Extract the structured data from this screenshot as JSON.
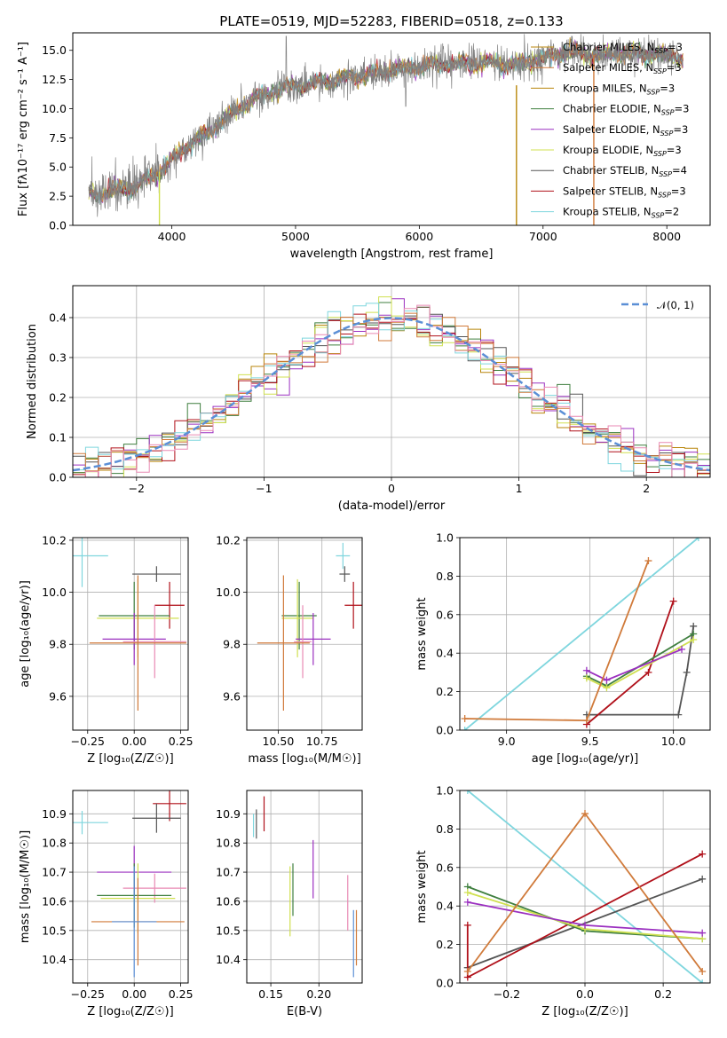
{
  "figure": {
    "title": "PLATE=0519, MJD=52283, FIBERID=0518, z=0.133"
  },
  "colors": {
    "models": [
      "#b8860b",
      "#3f7f3f",
      "#9b30c0",
      "#d0e050",
      "#555555",
      "#b0101a",
      "#7fd6de"
    ],
    "orange": "#d07a3a",
    "pink": "#e98ab4",
    "gauss": "#5b8fd6",
    "data": "#808080"
  },
  "chart_data": [
    {
      "id": "spectrum",
      "type": "line",
      "xlabel": "wavelength [Angstrom, rest frame]",
      "ylabel": "Flux [fλ10⁻¹⁷ erg cm⁻² s⁻¹ A⁻¹]",
      "xlim": [
        3200,
        8350
      ],
      "ylim": [
        0,
        16.5
      ],
      "xticks": [
        "4000",
        "5000",
        "6000",
        "7000",
        "8000"
      ],
      "yticks": [
        "0.0",
        "2.5",
        "5.0",
        "7.5",
        "10.0",
        "12.5",
        "15.0"
      ],
      "grid": false,
      "legend_position": "upper right",
      "legend": [
        "Chabrier MILES, N_SSP=3",
        "Salpeter MILES, N_SSP=3",
        "Kroupa MILES, N_SSP=3",
        "Chabrier ELODIE, N_SSP=3",
        "Salpeter ELODIE, N_SSP=3",
        "Kroupa ELODIE, N_SSP=3",
        "Chabrier STELIB, N_SSP=4",
        "Salpeter STELIB, N_SSP=3",
        "Kroupa STELIB, N_SSP=2"
      ],
      "continuum_x": [
        3300,
        3500,
        3700,
        3900,
        4000,
        4100,
        4300,
        4500,
        4700,
        4900,
        5000,
        5300,
        5600,
        6000,
        6400,
        6800,
        7000,
        7200,
        7400,
        7700,
        8000,
        8150
      ],
      "continuum_y": [
        2.7,
        2.9,
        3.3,
        4.6,
        5.6,
        6.6,
        8.0,
        9.7,
        11.0,
        11.8,
        12.0,
        12.4,
        13.0,
        13.6,
        13.9,
        13.8,
        14.3,
        14.9,
        14.6,
        14.8,
        14.6,
        14.4
      ]
    },
    {
      "id": "residuals",
      "type": "histogram",
      "xlabel": "(data-model)/error",
      "ylabel": "Normed distribution",
      "xlim": [
        -2.5,
        2.5
      ],
      "ylim": [
        0,
        0.48
      ],
      "xticks": [
        "−2",
        "−1",
        "0",
        "1",
        "2"
      ],
      "yticks": [
        "0.0",
        "0.1",
        "0.2",
        "0.3",
        "0.4"
      ],
      "grid": true,
      "legend_position": "upper right",
      "gauss_label": "𝒩(0, 1)",
      "bin_width": 0.1
    },
    {
      "id": "age_vs_z",
      "type": "errorbar",
      "xlabel": "Z [log₁₀(Z/Z☉)]",
      "ylabel": "age  [log₁₀(age/yr)]",
      "xlim": [
        -0.33,
        0.29
      ],
      "ylim": [
        9.47,
        10.21
      ],
      "xticks": [
        "−0.25",
        "0.00",
        "0.25"
      ],
      "yticks": [
        "9.6",
        "9.8",
        "10.0",
        "10.2"
      ],
      "grid": true,
      "points": [
        {
          "color": "#7fd6de",
          "x": -0.28,
          "xerr": 0.14,
          "y": 10.14,
          "yerr": 0.12
        },
        {
          "color": "#555555",
          "x": 0.12,
          "xerr": 0.13,
          "y": 10.07,
          "yerr": 0.03
        },
        {
          "color": "#b0101a",
          "x": 0.19,
          "xerr": 0.08,
          "y": 9.95,
          "yerr": 0.09
        },
        {
          "color": "#3f7f3f",
          "x": 0.0,
          "xerr": 0.19,
          "y": 9.91,
          "yerr": 0.13
        },
        {
          "color": "#d0e050",
          "x": 0.02,
          "xerr": 0.22,
          "y": 9.9,
          "yerr": 0.15
        },
        {
          "color": "#9b30c0",
          "x": 0.0,
          "xerr": 0.17,
          "y": 9.82,
          "yerr": 0.1
        },
        {
          "color": "#e98ab4",
          "x": 0.11,
          "xerr": 0.17,
          "y": 9.81,
          "yerr": 0.14
        },
        {
          "color": "#d07a3a",
          "x": 0.02,
          "xerr": 0.26,
          "y": 9.805,
          "yerr": 0.26
        }
      ]
    },
    {
      "id": "age_vs_mass",
      "type": "errorbar",
      "xlabel": "mass [log₁₀(M/M☉)]",
      "ylabel": "",
      "xlim": [
        10.32,
        10.98
      ],
      "ylim": [
        9.47,
        10.21
      ],
      "xticks": [
        "10.50",
        "10.75"
      ],
      "yticks": [
        "9.6",
        "9.8",
        "10.0",
        "10.2"
      ],
      "grid": true,
      "points": [
        {
          "color": "#7fd6de",
          "x": 10.87,
          "xerr": 0.04,
          "y": 10.14,
          "yerr": 0.05
        },
        {
          "color": "#555555",
          "x": 10.88,
          "xerr": 0.03,
          "y": 10.07,
          "yerr": 0.03
        },
        {
          "color": "#b0101a",
          "x": 10.93,
          "xerr": 0.05,
          "y": 9.95,
          "yerr": 0.09
        },
        {
          "color": "#3f7f3f",
          "x": 10.62,
          "xerr": 0.1,
          "y": 9.91,
          "yerr": 0.13
        },
        {
          "color": "#d0e050",
          "x": 10.61,
          "xerr": 0.09,
          "y": 9.9,
          "yerr": 0.15
        },
        {
          "color": "#9b30c0",
          "x": 10.7,
          "xerr": 0.1,
          "y": 9.82,
          "yerr": 0.1
        },
        {
          "color": "#e98ab4",
          "x": 10.64,
          "xerr": 0.05,
          "y": 9.81,
          "yerr": 0.14
        },
        {
          "color": "#d07a3a",
          "x": 10.53,
          "xerr": 0.15,
          "y": 9.805,
          "yerr": 0.26
        }
      ]
    },
    {
      "id": "weight_vs_age",
      "type": "line",
      "xlabel": "age  [log₁₀(age/yr)]",
      "ylabel": "mass weight",
      "xlim": [
        8.72,
        10.22
      ],
      "ylim": [
        0,
        1
      ],
      "xticks": [
        "9.0",
        "9.5",
        "10.0"
      ],
      "yticks": [
        "0.0",
        "0.2",
        "0.4",
        "0.6",
        "0.8",
        "1.0"
      ],
      "grid": true,
      "series": [
        {
          "color": "#7fd6de",
          "x": [
            8.75,
            10.15
          ],
          "y": [
            0.0,
            1.0
          ]
        },
        {
          "color": "#555555",
          "x": [
            9.48,
            10.03,
            10.08,
            10.12
          ],
          "y": [
            0.08,
            0.08,
            0.3,
            0.54
          ]
        },
        {
          "color": "#b0101a",
          "x": [
            9.48,
            9.85,
            10.0
          ],
          "y": [
            0.03,
            0.3,
            0.67
          ]
        },
        {
          "color": "#3f7f3f",
          "x": [
            9.48,
            9.6,
            10.12
          ],
          "y": [
            0.28,
            0.23,
            0.5
          ]
        },
        {
          "color": "#d0e050",
          "x": [
            9.48,
            9.6,
            10.12
          ],
          "y": [
            0.27,
            0.22,
            0.47
          ]
        },
        {
          "color": "#9b30c0",
          "x": [
            9.48,
            9.6,
            10.05
          ],
          "y": [
            0.31,
            0.26,
            0.42
          ]
        },
        {
          "color": "#d07a3a",
          "x": [
            8.75,
            9.48,
            9.85
          ],
          "y": [
            0.06,
            0.05,
            0.88
          ]
        }
      ]
    },
    {
      "id": "mass_vs_z",
      "type": "errorbar",
      "xlabel": "Z [log₁₀(Z/Z☉)]",
      "ylabel": "mass [log₁₀(M/M☉)]",
      "xlim": [
        -0.33,
        0.29
      ],
      "ylim": [
        10.32,
        10.98
      ],
      "xticks": [
        "−0.25",
        "0.00",
        "0.25"
      ],
      "yticks": [
        "10.4",
        "10.5",
        "10.6",
        "10.7",
        "10.8",
        "10.9"
      ],
      "grid": true,
      "points": [
        {
          "color": "#b0101a",
          "x": 0.19,
          "xerr": 0.09,
          "y": 10.935,
          "yerr": 0.06
        },
        {
          "color": "#555555",
          "x": 0.12,
          "xerr": 0.13,
          "y": 10.885,
          "yerr": 0.05
        },
        {
          "color": "#7fd6de",
          "x": -0.28,
          "xerr": 0.14,
          "y": 10.87,
          "yerr": 0.04
        },
        {
          "color": "#9b30c0",
          "x": 0.0,
          "xerr": 0.2,
          "y": 10.7,
          "yerr": 0.09
        },
        {
          "color": "#e98ab4",
          "x": 0.11,
          "xerr": 0.17,
          "y": 10.645,
          "yerr": 0.05
        },
        {
          "color": "#3f7f3f",
          "x": 0.0,
          "xerr": 0.2,
          "y": 10.62,
          "yerr": 0.11
        },
        {
          "color": "#d0e050",
          "x": 0.02,
          "xerr": 0.2,
          "y": 10.61,
          "yerr": 0.12
        },
        {
          "color": "#d07a3a",
          "x": 0.02,
          "xerr": 0.25,
          "y": 10.53,
          "yerr": 0.15
        },
        {
          "color": "#5b8fd6",
          "x": 0.0,
          "xerr": 0.12,
          "y": 10.53,
          "yerr": 0.19
        }
      ]
    },
    {
      "id": "mass_vs_ebv",
      "type": "errorbar",
      "xlabel": "E(B-V)",
      "ylabel": "",
      "xlim": [
        0.125,
        0.245
      ],
      "ylim": [
        10.32,
        10.98
      ],
      "xticks": [
        "0.15",
        "0.20"
      ],
      "yticks": [
        "10.4",
        "10.5",
        "10.6",
        "10.7",
        "10.8",
        "10.9"
      ],
      "grid": true,
      "points": [
        {
          "color": "#b0101a",
          "x": 0.143,
          "xerr": 0,
          "y": 10.9,
          "yerr": 0.06
        },
        {
          "color": "#555555",
          "x": 0.135,
          "xerr": 0,
          "y": 10.865,
          "yerr": 0.05
        },
        {
          "color": "#7fd6de",
          "x": 0.132,
          "xerr": 0,
          "y": 10.86,
          "yerr": 0.04
        },
        {
          "color": "#9b30c0",
          "x": 0.194,
          "xerr": 0,
          "y": 10.71,
          "yerr": 0.1
        },
        {
          "color": "#3f7f3f",
          "x": 0.173,
          "xerr": 0,
          "y": 10.64,
          "yerr": 0.09
        },
        {
          "color": "#d0e050",
          "x": 0.17,
          "xerr": 0,
          "y": 10.6,
          "yerr": 0.12
        },
        {
          "color": "#e98ab4",
          "x": 0.23,
          "xerr": 0,
          "y": 10.595,
          "yerr": 0.095
        },
        {
          "color": "#d07a3a",
          "x": 0.239,
          "xerr": 0,
          "y": 10.475,
          "yerr": 0.095
        },
        {
          "color": "#5b8fd6",
          "x": 0.236,
          "xerr": 0,
          "y": 10.455,
          "yerr": 0.115
        }
      ]
    },
    {
      "id": "weight_vs_z",
      "type": "line",
      "xlabel": "Z [log₁₀(Z/Z☉)]",
      "ylabel": "mass weight",
      "xlim": [
        -0.32,
        0.32
      ],
      "ylim": [
        0,
        1
      ],
      "xticks": [
        "−0.2",
        "0.0",
        "0.2"
      ],
      "yticks": [
        "0.0",
        "0.2",
        "0.4",
        "0.6",
        "0.8",
        "1.0"
      ],
      "grid": true,
      "series": [
        {
          "color": "#7fd6de",
          "x": [
            -0.3,
            0.3
          ],
          "y": [
            1.0,
            0.0
          ]
        },
        {
          "color": "#555555",
          "x": [
            -0.3,
            -0.3,
            0.3
          ],
          "y": [
            0.08,
            0.08,
            0.54
          ]
        },
        {
          "color": "#b0101a",
          "x": [
            -0.3,
            -0.3,
            0.3
          ],
          "y": [
            0.3,
            0.03,
            0.67
          ]
        },
        {
          "color": "#3f7f3f",
          "x": [
            -0.3,
            0.0,
            0.3
          ],
          "y": [
            0.5,
            0.27,
            0.23
          ]
        },
        {
          "color": "#d0e050",
          "x": [
            -0.3,
            0.0,
            0.3
          ],
          "y": [
            0.47,
            0.28,
            0.23
          ]
        },
        {
          "color": "#9b30c0",
          "x": [
            -0.3,
            0.0,
            0.3
          ],
          "y": [
            0.42,
            0.3,
            0.26
          ]
        },
        {
          "color": "#d07a3a",
          "x": [
            -0.3,
            0.0,
            0.3
          ],
          "y": [
            0.06,
            0.88,
            0.06
          ]
        }
      ]
    }
  ]
}
